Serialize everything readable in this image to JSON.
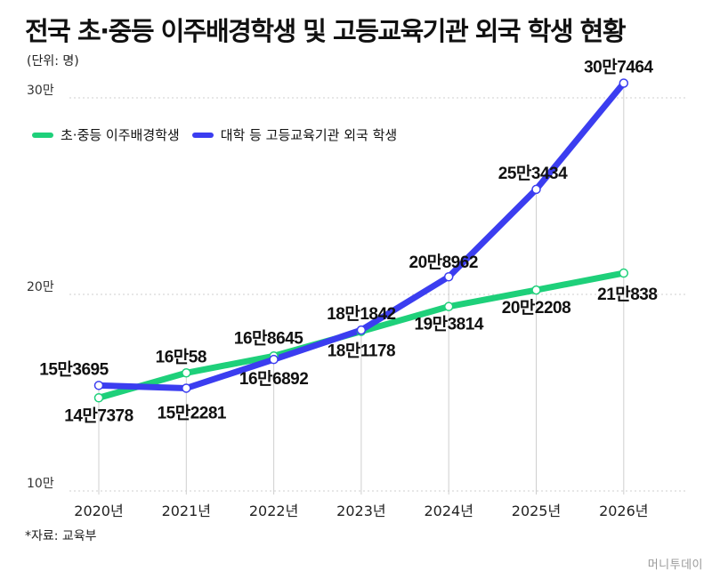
{
  "title": "전국 초·중등 이주배경학생 및 고등교육기관 외국 학생 현황",
  "unit": "(단위: 명)",
  "source": "*자료: 교육부",
  "logo": "머니투데이",
  "colors": {
    "green": "#1ed07a",
    "blue": "#3b3df0",
    "grid": "#cfcfcf"
  },
  "chart_data": {
    "type": "line",
    "categories": [
      "2020년",
      "2021년",
      "2022년",
      "2023년",
      "2024년",
      "2025년",
      "2026년"
    ],
    "y_ticks": [
      {
        "value": 100000,
        "label": "10만"
      },
      {
        "value": 200000,
        "label": "20만"
      },
      {
        "value": 300000,
        "label": "30만"
      }
    ],
    "ylim": [
      100000,
      305000
    ],
    "grid": "horizontal dotted",
    "legend_position": "top-left",
    "series": [
      {
        "name": "초·중등 이주배경학생",
        "color": "#1ed07a",
        "values": [
          147378,
          160058,
          168645,
          181178,
          193814,
          202208,
          210838
        ],
        "labels": [
          "14만7378",
          "16만58",
          "16만8645",
          "18만1178",
          "19만3814",
          "20만2208",
          "21만838"
        ]
      },
      {
        "name": "대학 등 고등교육기관 외국 학생",
        "color": "#3b3df0",
        "values": [
          153695,
          152281,
          166892,
          181842,
          208962,
          253434,
          307464
        ],
        "labels": [
          "15만3695",
          "15만2281",
          "16만6892",
          "18만1842",
          "20만8962",
          "25만3434",
          "30만7464"
        ]
      }
    ]
  }
}
